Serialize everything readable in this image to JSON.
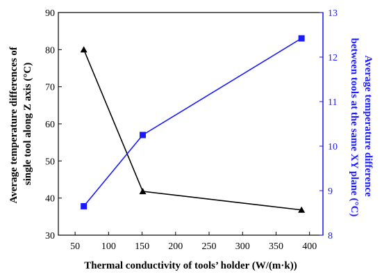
{
  "colors": {
    "left_series": "#000000",
    "right_series": "#1a1aff",
    "right_axis": "#1a1aff",
    "axis": "#000000"
  },
  "chart_data": {
    "type": "line",
    "title": "",
    "xlabel": "Thermal conductivity of tools’ holder (W/(m·k))",
    "ylabel_left": [
      "Average temperature differences of",
      "single tool along Z axis  (°C)"
    ],
    "ylabel_right": [
      "Average temperature difference",
      "between tools at the same XY plane (°C)"
    ],
    "xlim": [
      25,
      420
    ],
    "x_ticks": [
      50,
      100,
      150,
      200,
      250,
      300,
      350,
      400
    ],
    "ylim_left": [
      30,
      90
    ],
    "y_ticks_left": [
      30,
      40,
      50,
      60,
      70,
      80,
      90
    ],
    "ylim_right": [
      8,
      13
    ],
    "y_ticks_right": [
      8,
      9,
      10,
      11,
      12,
      13
    ],
    "grid": false,
    "legend": "none",
    "series": [
      {
        "axis": "left",
        "marker": "triangle",
        "x": [
          63,
          151,
          388
        ],
        "values": [
          80,
          41.8,
          36.8
        ]
      },
      {
        "axis": "right",
        "marker": "square",
        "x": [
          63,
          151,
          388
        ],
        "values": [
          8.65,
          10.25,
          12.42
        ]
      }
    ]
  }
}
